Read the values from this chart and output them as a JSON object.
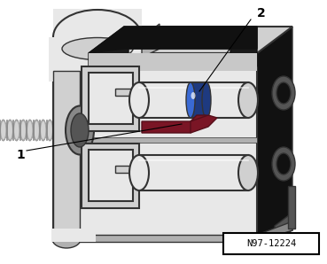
{
  "background_color": "#ffffff",
  "ref_label": "N97-12224",
  "label1": "1",
  "label2": "2",
  "body_light": "#e8e8e8",
  "body_mid": "#d0d0d0",
  "body_dark": "#b0b0b0",
  "edge_black": "#111111",
  "edge_dark": "#333333",
  "gray_dark": "#555555",
  "gray_mid": "#888888",
  "gray_light": "#cccccc",
  "blue_ring": "#1e3a80",
  "blue_highlight": "#3a6ad4",
  "red_latch": "#7a1525",
  "red_latch_dark": "#550f1a",
  "screw_light": "#d4d4d4",
  "screw_mid": "#aaaaaa",
  "top_bg": "#c8c8c8",
  "cavity_dark": "#1a1a1a",
  "cavity_bg": "#2a2a2a",
  "white": "#ffffff",
  "tab_color": "#b8b8b8"
}
